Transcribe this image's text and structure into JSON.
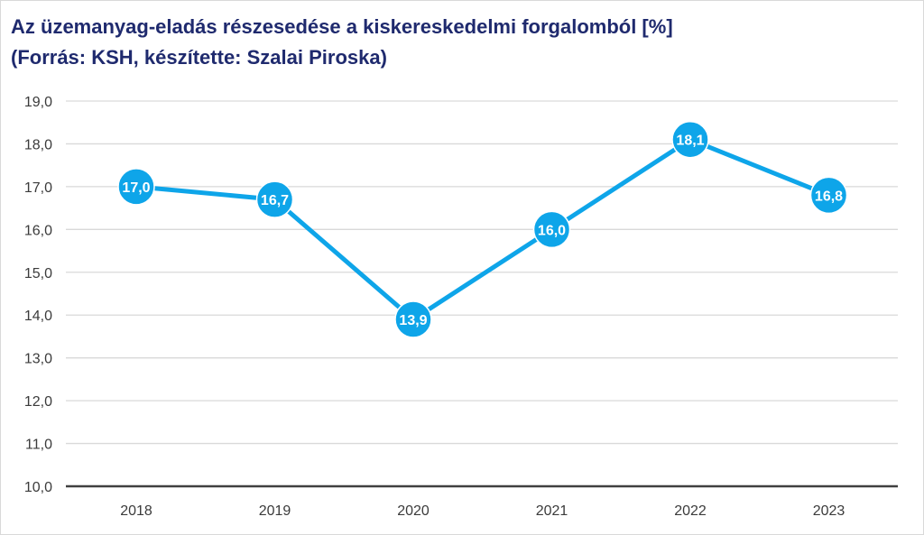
{
  "chart_data": {
    "type": "line",
    "title": "Az üzemanyag-eladás részesedése a kiskereskedelmi forgalomból [%]",
    "subtitle": "(Forrás: KSH, készítette: Szalai Piroska)",
    "categories": [
      "2018",
      "2019",
      "2020",
      "2021",
      "2022",
      "2023"
    ],
    "series": [
      {
        "values": [
          17.0,
          16.7,
          13.9,
          16.0,
          18.1,
          16.8
        ],
        "data_labels": [
          "17,0",
          "16,7",
          "13,9",
          "16,0",
          "18,1",
          "16,8"
        ],
        "color": "#0ea5e9"
      }
    ],
    "ylim": [
      10,
      19
    ],
    "y_ticks": [
      "10,0",
      "11,0",
      "12,0",
      "13,0",
      "14,0",
      "15,0",
      "16,0",
      "17,0",
      "18,0",
      "19,0"
    ],
    "grid": true,
    "legend": "none",
    "colors": {
      "title": "#1f2a6e",
      "grid": "#d9d9d9",
      "axis": "#404040",
      "line": "#0ea5e9",
      "label_text": "#ffffff"
    }
  }
}
